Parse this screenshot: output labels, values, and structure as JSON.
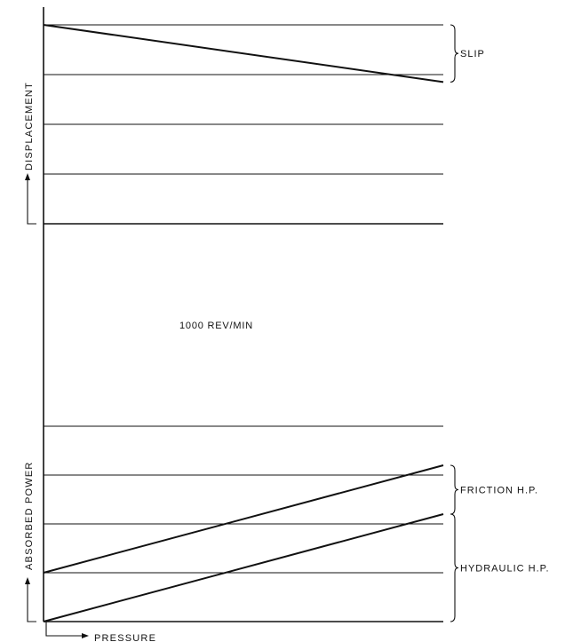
{
  "colors": {
    "ink": "#111111",
    "background": "#ffffff"
  },
  "chart_data": [
    {
      "type": "line",
      "title": "",
      "ylabel": "DISPLACEMENT",
      "xlabel": "",
      "ylim": [
        0,
        4
      ],
      "xlim": [
        0,
        1
      ],
      "grid": true,
      "series": [
        {
          "name": "",
          "x": [
            0,
            1
          ],
          "y": [
            4,
            2.85
          ]
        }
      ],
      "annotations": [
        {
          "label": "SLIP",
          "from": 4,
          "to": 2.85
        }
      ]
    },
    {
      "type": "line",
      "title": "",
      "ylabel": "ABSORBED POWER",
      "xlabel": "PRESSURE",
      "ylim": [
        0,
        4
      ],
      "xlim": [
        0,
        1
      ],
      "grid": true,
      "series": [
        {
          "name": "",
          "x": [
            0,
            1
          ],
          "y": [
            1,
            3.2
          ]
        },
        {
          "name": "",
          "x": [
            0,
            1
          ],
          "y": [
            0,
            2.2
          ]
        }
      ],
      "annotations": [
        {
          "label": "FRICTION H.P.",
          "from": 3.2,
          "to": 2.2
        },
        {
          "label": "HYDRAULIC H.P.",
          "from": 2.2,
          "to": 0
        }
      ]
    }
  ],
  "center_note": "1000 REV/MIN"
}
